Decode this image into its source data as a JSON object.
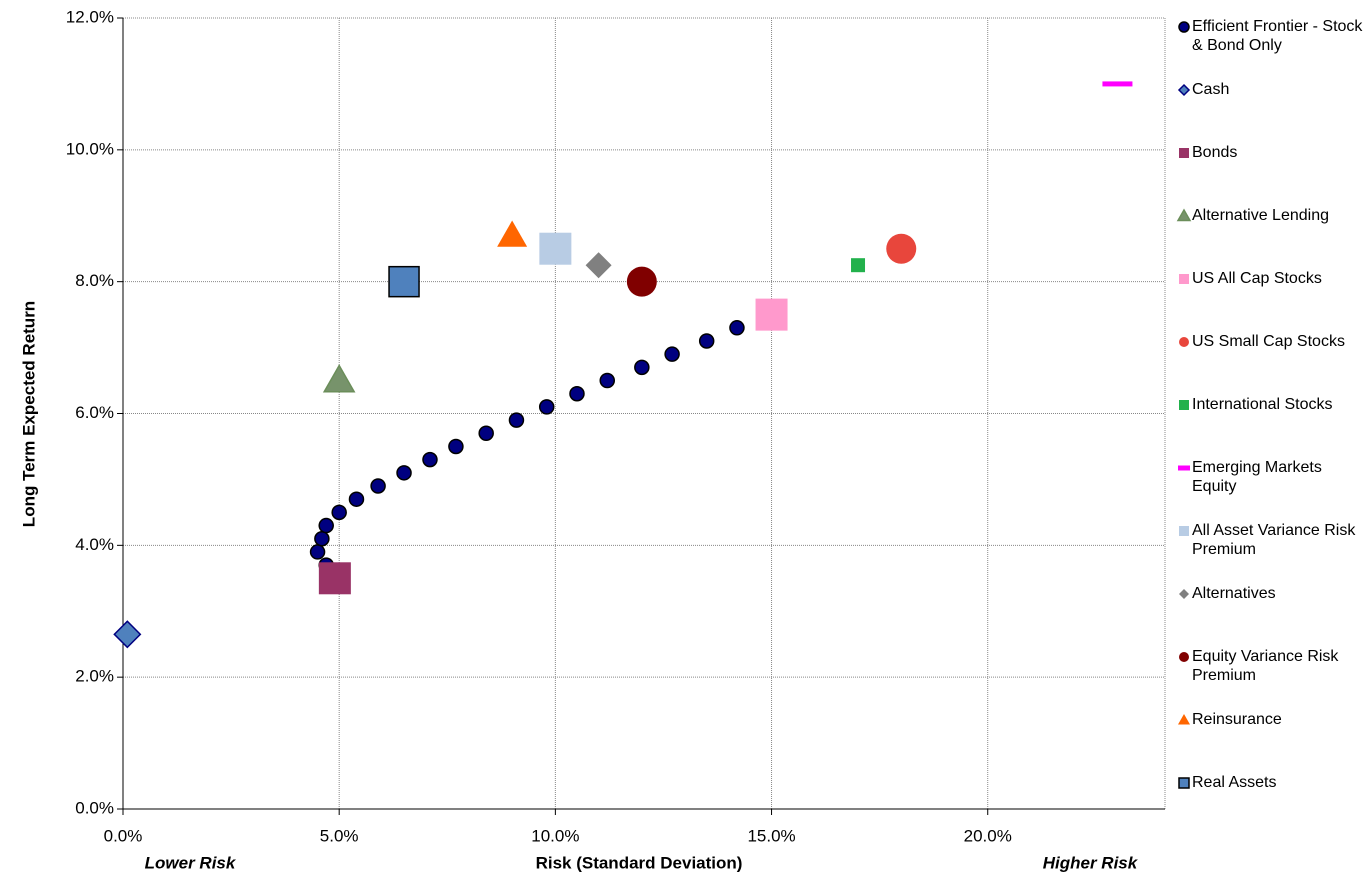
{
  "chart_data": {
    "type": "scatter",
    "x_label": "Risk (Standard Deviation)",
    "y_label": "Long Term Expected Return",
    "annotations": [
      "Lower Risk",
      "Higher Risk"
    ],
    "xlim": [
      0,
      24.1
    ],
    "ylim": [
      0,
      12
    ],
    "xticks": [
      {
        "value": 0,
        "label": "0.0%"
      },
      {
        "value": 5,
        "label": "5.0%"
      },
      {
        "value": 10,
        "label": "10.0%"
      },
      {
        "value": 15,
        "label": "15.0%"
      },
      {
        "value": 20,
        "label": "20.0%"
      }
    ],
    "yticks": [
      {
        "value": 0,
        "label": "0.0%"
      },
      {
        "value": 2,
        "label": "2.0%"
      },
      {
        "value": 4,
        "label": "4.0%"
      },
      {
        "value": 6,
        "label": "6.0%"
      },
      {
        "value": 8,
        "label": "8.0%"
      },
      {
        "value": 10,
        "label": "10.0%"
      },
      {
        "value": 12,
        "label": "12.0%"
      }
    ],
    "grid": true,
    "legend": "right",
    "series": [
      {
        "name": "Efficient Frontier - Stock & Bond Only",
        "color": "#000080",
        "marker": "circle",
        "x": [
          4.7,
          4.5,
          4.6,
          4.7,
          5.0,
          5.4,
          5.9,
          6.5,
          7.1,
          7.7,
          8.4,
          9.1,
          9.8,
          10.5,
          11.2,
          12.0,
          12.7,
          13.5,
          14.2
        ],
        "values": [
          3.7,
          3.9,
          4.1,
          4.3,
          4.5,
          4.7,
          4.9,
          5.1,
          5.3,
          5.5,
          5.7,
          5.9,
          6.1,
          6.3,
          6.5,
          6.7,
          6.9,
          7.1,
          7.3
        ]
      },
      {
        "name": "Cash",
        "color": "#4f81bd",
        "marker": "diamond",
        "x": [
          0.1
        ],
        "values": [
          2.65
        ]
      },
      {
        "name": "Bonds",
        "color": "#993366",
        "marker": "square",
        "x": [
          4.9
        ],
        "values": [
          3.5
        ]
      },
      {
        "name": "Alternative Lending",
        "color": "#77936b",
        "marker": "triangle",
        "x": [
          5.0
        ],
        "values": [
          6.5
        ]
      },
      {
        "name": "US All Cap Stocks",
        "color": "#ff99cc",
        "marker": "square",
        "x": [
          15.0
        ],
        "values": [
          7.5
        ]
      },
      {
        "name": "US Small Cap Stocks",
        "color": "#e8463c",
        "marker": "circle",
        "x": [
          18.0
        ],
        "values": [
          8.5
        ]
      },
      {
        "name": "International Stocks",
        "color": "#22b14c",
        "marker": "square",
        "x": [
          17.0
        ],
        "values": [
          8.25
        ]
      },
      {
        "name": "Emerging Markets Equity",
        "color": "#ff00ff",
        "marker": "dash",
        "x": [
          23.0
        ],
        "values": [
          11.0
        ]
      },
      {
        "name": "All Asset Variance Risk Premium",
        "color": "#b8cce4",
        "marker": "square",
        "x": [
          10.0
        ],
        "values": [
          8.5
        ]
      },
      {
        "name": "Alternatives",
        "color": "#808080",
        "marker": "diamond",
        "x": [
          11.0
        ],
        "values": [
          8.25
        ]
      },
      {
        "name": "Equity Variance Risk Premium",
        "color": "#800000",
        "marker": "circle",
        "x": [
          12.0
        ],
        "values": [
          8.0
        ]
      },
      {
        "name": "Reinsurance",
        "color": "#ff6600",
        "marker": "triangle",
        "x": [
          9.0
        ],
        "values": [
          8.7
        ]
      },
      {
        "name": "Real Assets",
        "color": "#4f81bd",
        "marker": "square",
        "x": [
          6.5
        ],
        "values": [
          8.0
        ]
      }
    ]
  }
}
